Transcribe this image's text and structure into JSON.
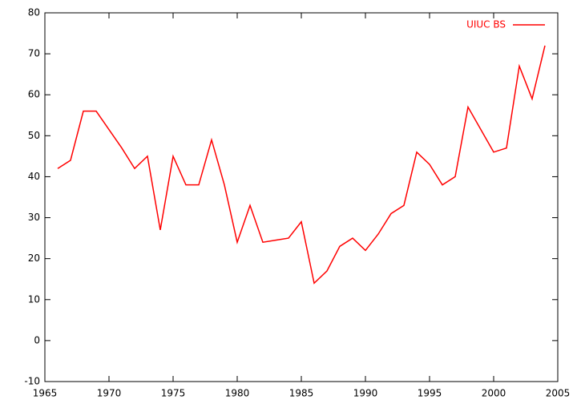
{
  "chart_data": {
    "type": "line",
    "x": [
      1966,
      1967,
      1968,
      1969,
      1970,
      1971,
      1972,
      1973,
      1974,
      1975,
      1976,
      1977,
      1978,
      1979,
      1980,
      1981,
      1982,
      1983,
      1984,
      1985,
      1986,
      1987,
      1988,
      1989,
      1990,
      1991,
      1992,
      1993,
      1994,
      1995,
      1996,
      1997,
      1998,
      1999,
      2000,
      2001,
      2002,
      2003,
      2004
    ],
    "series": [
      {
        "name": "UIUC BS",
        "color": "#ff0000",
        "values": [
          42,
          44,
          56,
          56,
          51.5,
          47,
          42,
          45,
          27,
          45,
          38,
          38,
          49,
          38,
          24,
          33,
          24,
          24.5,
          25,
          29,
          14,
          17,
          23,
          25,
          22,
          26,
          31,
          33,
          46,
          43,
          38,
          40,
          57,
          51.5,
          46,
          47,
          67,
          59,
          72
        ]
      }
    ],
    "xlim": [
      1965,
      2005
    ],
    "xticks": [
      1965,
      1970,
      1975,
      1980,
      1985,
      1990,
      1995,
      2000,
      2005
    ],
    "ylim": [
      -10,
      80
    ],
    "yticks": [
      -10,
      0,
      10,
      20,
      30,
      40,
      50,
      60,
      70,
      80
    ],
    "legend": "top-right"
  }
}
